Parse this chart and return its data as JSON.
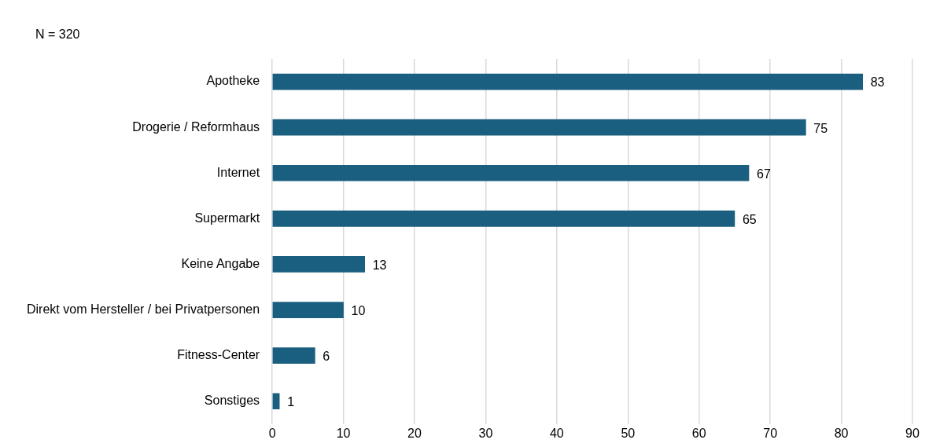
{
  "chart_data": {
    "type": "bar",
    "orientation": "horizontal",
    "annotations": [
      "N = 320"
    ],
    "categories": [
      "Apotheke",
      "Drogerie / Reformhaus",
      "Internet",
      "Supermarkt",
      "Keine Angabe",
      "Direkt vom Hersteller / bei Privatpersonen",
      "Fitness-Center",
      "Sonstiges"
    ],
    "values": [
      83,
      75,
      67,
      65,
      13,
      10,
      6,
      1
    ],
    "color": "#1b5f80",
    "xlim": [
      0,
      90
    ],
    "xticks": [
      0,
      10,
      20,
      30,
      40,
      50,
      60,
      70,
      80,
      90
    ],
    "grid": "x",
    "data_labels": true,
    "legend": false
  }
}
